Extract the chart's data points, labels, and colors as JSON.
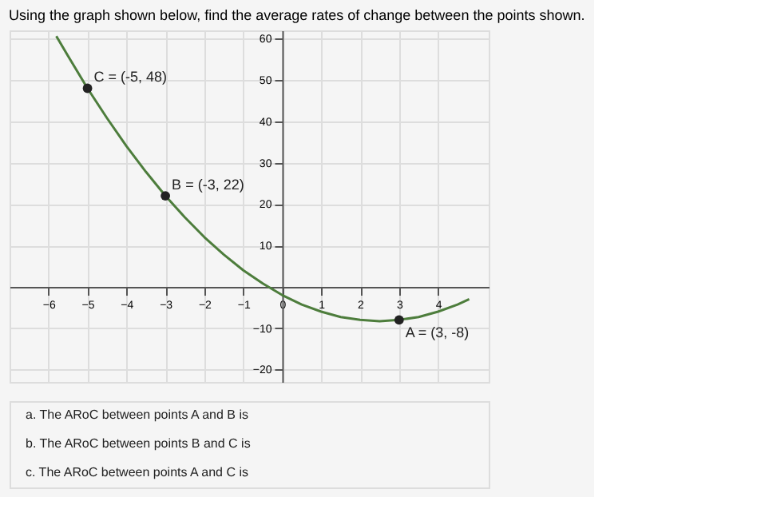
{
  "chart_data": {
    "type": "line",
    "title": "Using the graph shown below, find the average rates of change between the points shown.",
    "x": [
      -5.8,
      -5.5,
      -5,
      -4.5,
      -4,
      -3.5,
      -3,
      -2.5,
      -2,
      -1.5,
      -1,
      -0.5,
      0,
      0.5,
      1,
      1.5,
      2,
      2.5,
      3,
      3.5,
      4,
      4.5,
      4.8
    ],
    "series": [
      {
        "color": "#4d7d3c",
        "values": [
          60.6,
          55.8,
          48,
          40.8,
          34,
          27.8,
          22,
          16.8,
          12,
          7.8,
          4,
          0.8,
          -2,
          -4.3,
          -6,
          -7.3,
          -8,
          -8.3,
          -8,
          -7.3,
          -6,
          -4.3,
          -3
        ]
      },
      {
        "type": "scatter",
        "marker": "circle",
        "color": "#222222",
        "x": [
          -5,
          -3,
          3
        ],
        "values": [
          48,
          22,
          -8
        ]
      }
    ],
    "line_style": "solid",
    "grid": true,
    "xlim": [
      -7,
      5.3
    ],
    "ylim": [
      -23,
      62
    ],
    "xticks": [
      -6,
      -5,
      -4,
      -3,
      -2,
      -1,
      0,
      1,
      2,
      3,
      4
    ],
    "yticks": [
      -20,
      -10,
      10,
      20,
      30,
      40,
      50,
      60
    ],
    "annotations": [
      {
        "text": "C = (-5, 48)",
        "x": -5,
        "y": 48
      },
      {
        "text": "B = (-3, 22)",
        "x": -3,
        "y": 22
      },
      {
        "text": "A = (3, -8)",
        "x": 3,
        "y": -8
      },
      "a. The ARoC between points A and B is",
      "b. The ARoC between points B and C is",
      "c. The ARoC between points A and C is"
    ]
  }
}
